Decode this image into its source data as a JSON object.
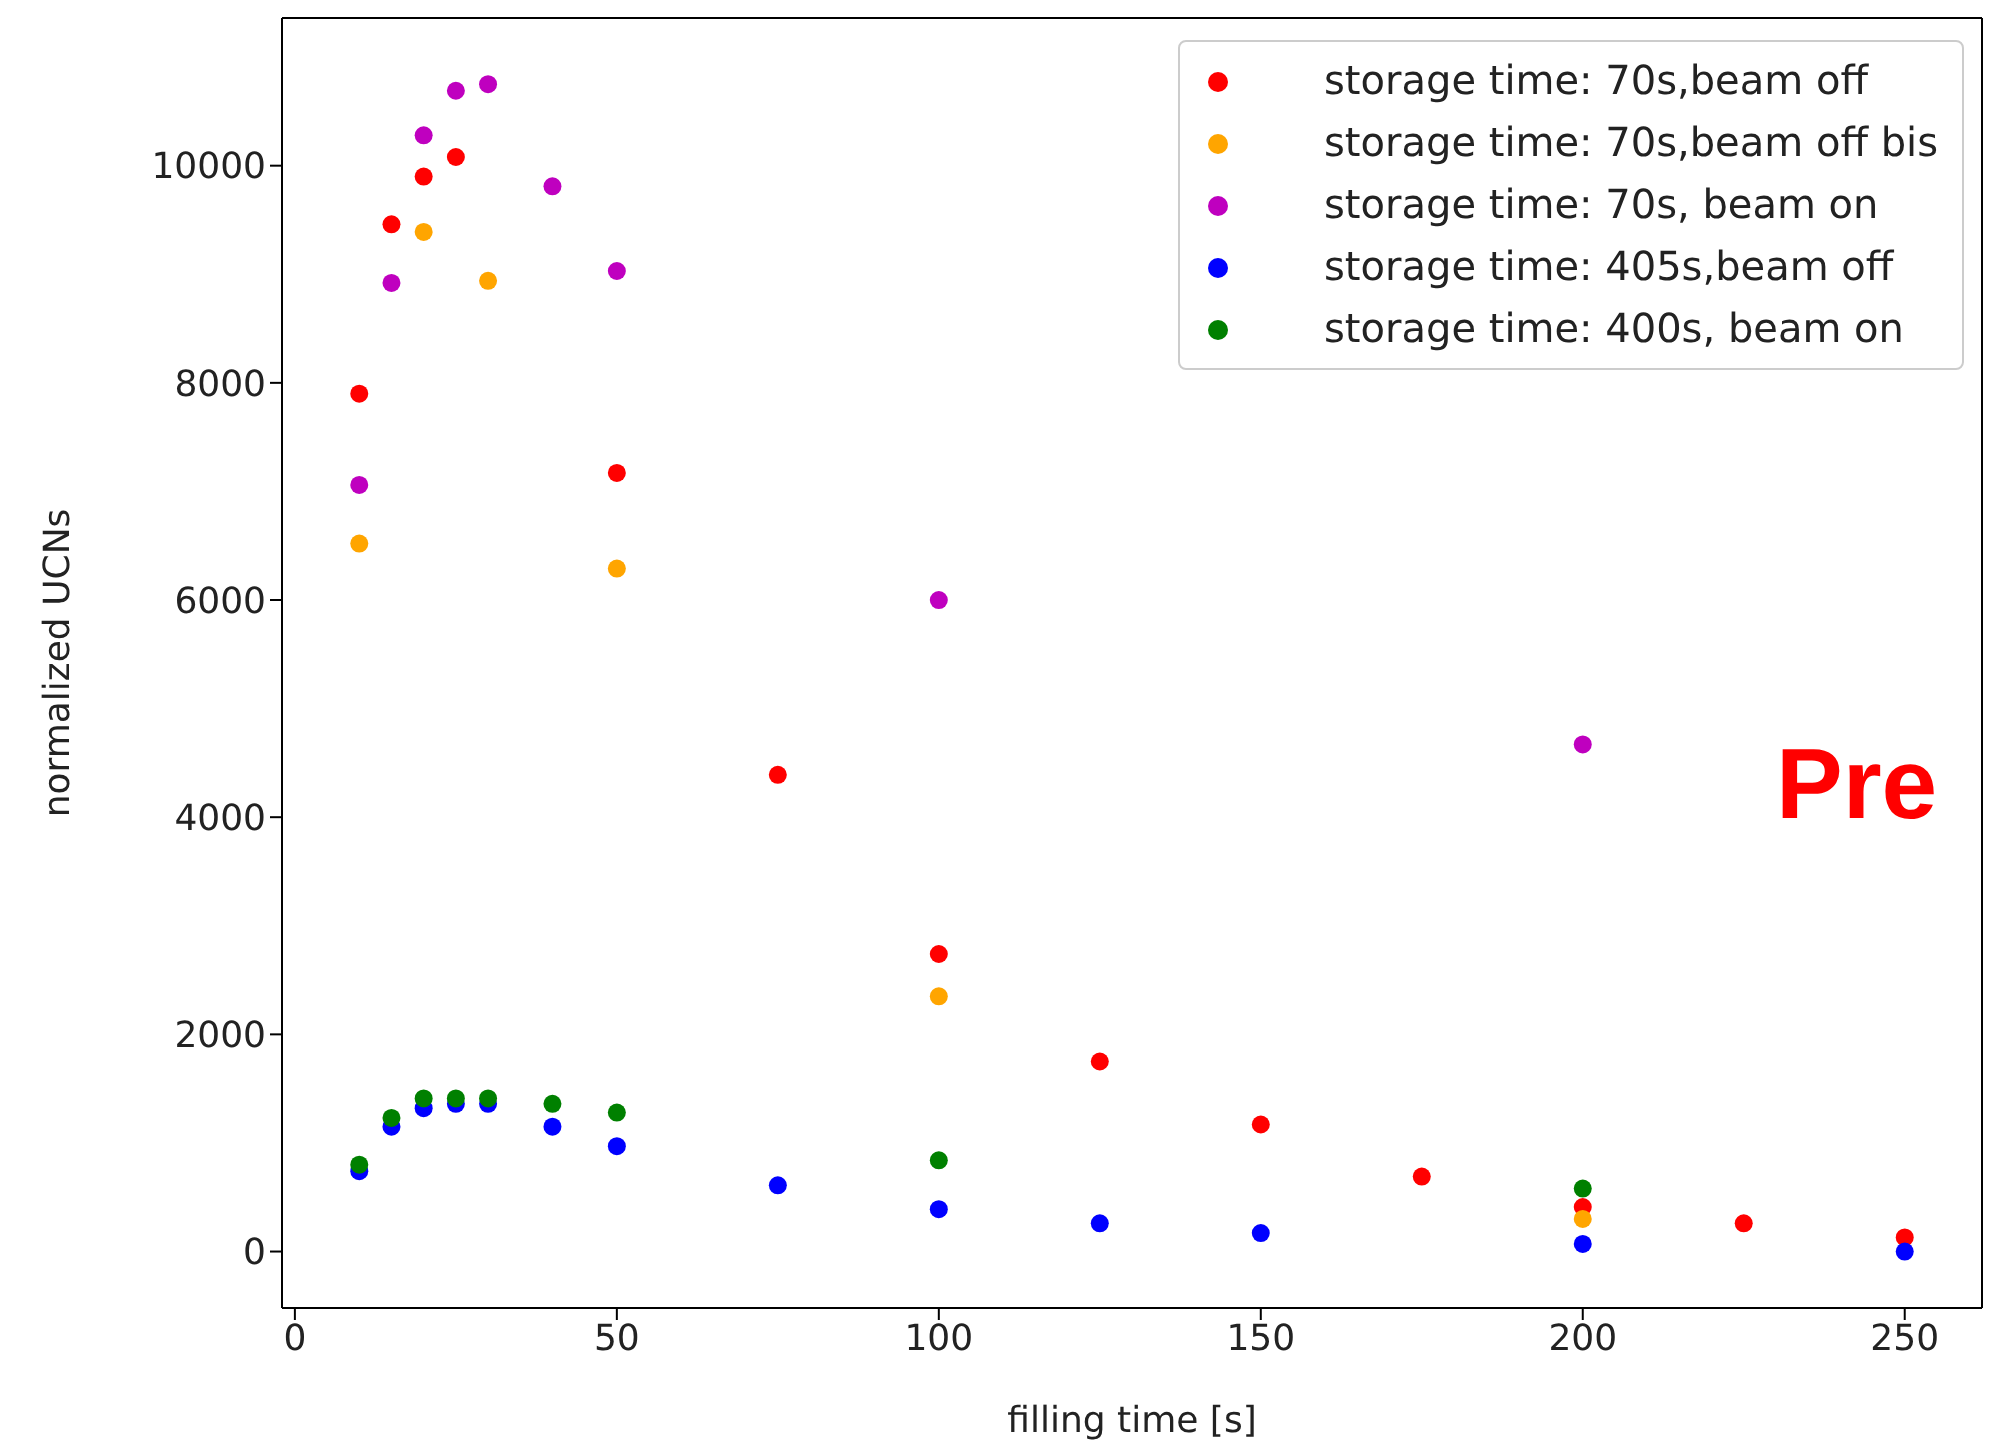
{
  "chart_data": {
    "type": "scatter",
    "xlabel": "filling time [s]",
    "ylabel": "normalized UCNs",
    "xlim": [
      -2,
      262
    ],
    "ylim": [
      -520,
      11360
    ],
    "xticks": [
      0,
      50,
      100,
      150,
      200,
      250
    ],
    "yticks": [
      0,
      2000,
      4000,
      6000,
      8000,
      10000
    ],
    "grid": false,
    "legend": "top right",
    "marker": "circle",
    "annotations": [
      "Pre"
    ],
    "series": [
      {
        "name": "storage time: 70s,beam off",
        "color": "#ff0000",
        "x": [
          10,
          15,
          20,
          25,
          50,
          75,
          100,
          125,
          150,
          175,
          200,
          225,
          250
        ],
        "values": [
          7900,
          9460,
          9900,
          10080,
          7170,
          4390,
          2740,
          1750,
          1170,
          690,
          410,
          260,
          130
        ]
      },
      {
        "name": "storage time: 70s,beam off bis",
        "color": "#ffa500",
        "x": [
          10,
          20,
          30,
          50,
          100,
          200
        ],
        "values": [
          6520,
          9390,
          8940,
          6290,
          2350,
          300
        ]
      },
      {
        "name": "storage time: 70s, beam on",
        "color": "#bf00bf",
        "x": [
          10,
          15,
          20,
          25,
          30,
          40,
          50,
          100,
          200
        ],
        "values": [
          7060,
          8920,
          10280,
          10690,
          10750,
          9810,
          9030,
          6000,
          4670
        ]
      },
      {
        "name": "storage time: 405s,beam off",
        "color": "#0000ff",
        "x": [
          10,
          15,
          20,
          25,
          30,
          40,
          50,
          75,
          100,
          125,
          150,
          200,
          250
        ],
        "values": [
          740,
          1150,
          1320,
          1360,
          1360,
          1150,
          970,
          610,
          390,
          260,
          170,
          70,
          0
        ]
      },
      {
        "name": "storage time: 400s, beam on",
        "color": "#008000",
        "x": [
          10,
          15,
          20,
          25,
          30,
          40,
          50,
          100,
          200
        ],
        "values": [
          800,
          1230,
          1410,
          1410,
          1410,
          1360,
          1280,
          840,
          580
        ]
      }
    ]
  }
}
